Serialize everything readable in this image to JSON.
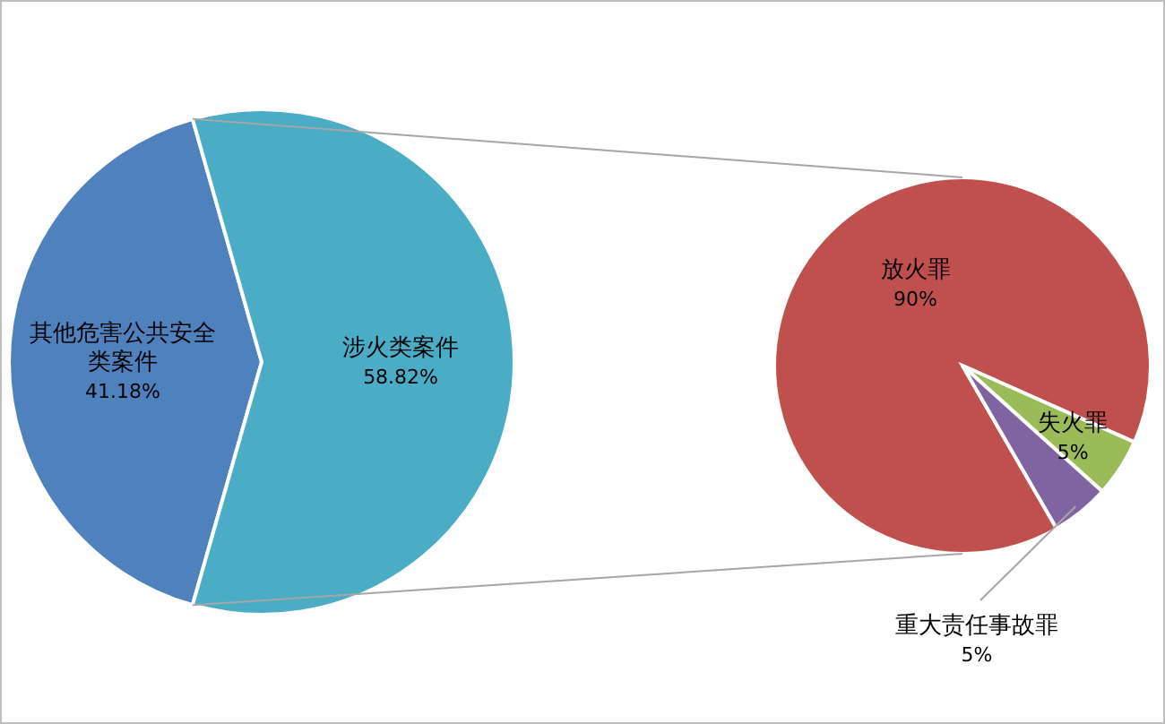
{
  "chart_data": [
    {
      "type": "pie",
      "categories": [
        "其他危害公共安全类案件",
        "涉火类案件"
      ],
      "values": [
        41.18,
        58.82
      ],
      "colors": [
        "#4f81bd",
        "#4bacc6"
      ],
      "value_labels": [
        "41.18%",
        "58.82%"
      ]
    },
    {
      "type": "pie",
      "categories": [
        "放火罪",
        "失火罪",
        "重大责任事故罪"
      ],
      "values": [
        90,
        5,
        5
      ],
      "colors": [
        "#c0504d",
        "#9bbb59",
        "#8064a2"
      ],
      "value_labels": [
        "90%",
        "5%",
        "5%"
      ]
    }
  ]
}
